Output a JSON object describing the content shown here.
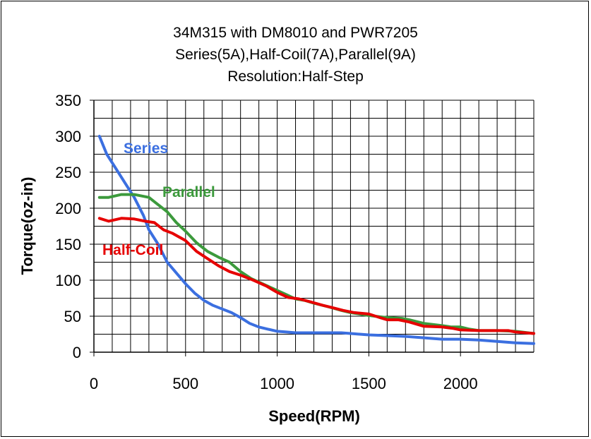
{
  "chart_data": {
    "type": "line",
    "title": "34M315 with DM8010 and PWR7205",
    "subtitle": "Series(5A),Half-Coil(7A),Parallel(9A)",
    "resolution_text": "Resolution:Half-Step",
    "xlabel": "Speed(RPM)",
    "ylabel": "Torque(oz-in)",
    "xlim": [
      0,
      2400
    ],
    "ylim": [
      0,
      350
    ],
    "x_ticks": [
      0,
      500,
      1000,
      1500,
      2000
    ],
    "x_tick_labels": [
      "0",
      "500",
      "1000",
      "1500",
      "2000"
    ],
    "x_grid_step": 100,
    "y_ticks": [
      0,
      50,
      100,
      150,
      200,
      250,
      300,
      350
    ],
    "y_tick_labels": [
      "0",
      "50",
      "100",
      "150",
      "200",
      "250",
      "300",
      "350"
    ],
    "y_grid_step": 25,
    "grid": true,
    "legend": "inline labels",
    "series": [
      {
        "name": "Series",
        "color": "#3b6fe0",
        "label_text_color": "#3b6fe0",
        "points": [
          [
            30,
            300
          ],
          [
            70,
            275
          ],
          [
            120,
            255
          ],
          [
            170,
            235
          ],
          [
            220,
            215
          ],
          [
            270,
            190
          ],
          [
            300,
            170
          ],
          [
            350,
            150
          ],
          [
            400,
            125
          ],
          [
            450,
            110
          ],
          [
            500,
            95
          ],
          [
            550,
            82
          ],
          [
            600,
            72
          ],
          [
            650,
            65
          ],
          [
            700,
            60
          ],
          [
            750,
            55
          ],
          [
            800,
            48
          ],
          [
            850,
            40
          ],
          [
            900,
            35
          ],
          [
            950,
            32
          ],
          [
            1000,
            29
          ],
          [
            1050,
            28
          ],
          [
            1100,
            27
          ],
          [
            1150,
            27
          ],
          [
            1200,
            27
          ],
          [
            1300,
            27
          ],
          [
            1350,
            27
          ],
          [
            1400,
            26
          ],
          [
            1450,
            25
          ],
          [
            1500,
            24
          ],
          [
            1600,
            23
          ],
          [
            1700,
            22
          ],
          [
            1800,
            20
          ],
          [
            1900,
            18
          ],
          [
            2000,
            18
          ],
          [
            2100,
            17
          ],
          [
            2200,
            15
          ],
          [
            2300,
            13
          ],
          [
            2400,
            12
          ]
        ]
      },
      {
        "name": "Parallel",
        "color": "#3c9a3c",
        "label_text_color": "#3c9a3c",
        "points": [
          [
            30,
            215
          ],
          [
            80,
            215
          ],
          [
            150,
            219
          ],
          [
            220,
            219
          ],
          [
            300,
            215
          ],
          [
            340,
            207
          ],
          [
            400,
            195
          ],
          [
            450,
            180
          ],
          [
            500,
            168
          ],
          [
            560,
            152
          ],
          [
            620,
            140
          ],
          [
            680,
            132
          ],
          [
            740,
            125
          ],
          [
            800,
            112
          ],
          [
            860,
            102
          ],
          [
            920,
            95
          ],
          [
            980,
            88
          ],
          [
            1050,
            80
          ],
          [
            1100,
            74
          ],
          [
            1150,
            72
          ],
          [
            1200,
            68
          ],
          [
            1280,
            63
          ],
          [
            1350,
            58
          ],
          [
            1400,
            55
          ],
          [
            1500,
            51
          ],
          [
            1600,
            48
          ],
          [
            1680,
            47
          ],
          [
            1720,
            45
          ],
          [
            1800,
            40
          ],
          [
            1900,
            37
          ],
          [
            1950,
            35
          ],
          [
            2000,
            35
          ],
          [
            2050,
            32
          ],
          [
            2100,
            30
          ],
          [
            2200,
            30
          ],
          [
            2300,
            29
          ],
          [
            2400,
            26
          ]
        ]
      },
      {
        "name": "Half-Coil",
        "color": "#e60000",
        "label_text_color": "#e60000",
        "points": [
          [
            30,
            186
          ],
          [
            80,
            182
          ],
          [
            150,
            186
          ],
          [
            220,
            185
          ],
          [
            280,
            182
          ],
          [
            330,
            180
          ],
          [
            380,
            170
          ],
          [
            430,
            165
          ],
          [
            500,
            155
          ],
          [
            560,
            140
          ],
          [
            620,
            130
          ],
          [
            680,
            120
          ],
          [
            740,
            112
          ],
          [
            800,
            107
          ],
          [
            870,
            100
          ],
          [
            940,
            92
          ],
          [
            1000,
            83
          ],
          [
            1060,
            76
          ],
          [
            1120,
            74
          ],
          [
            1180,
            70
          ],
          [
            1250,
            65
          ],
          [
            1300,
            62
          ],
          [
            1360,
            58
          ],
          [
            1420,
            55
          ],
          [
            1500,
            53
          ],
          [
            1560,
            48
          ],
          [
            1600,
            45
          ],
          [
            1660,
            45
          ],
          [
            1720,
            42
          ],
          [
            1800,
            36
          ],
          [
            1900,
            35
          ],
          [
            1960,
            33
          ],
          [
            2000,
            31
          ],
          [
            2100,
            30
          ],
          [
            2200,
            30
          ],
          [
            2260,
            30
          ],
          [
            2300,
            28
          ],
          [
            2400,
            26
          ]
        ]
      }
    ],
    "series_labels": [
      "Series",
      "Parallel",
      "Half-Coil"
    ]
  }
}
